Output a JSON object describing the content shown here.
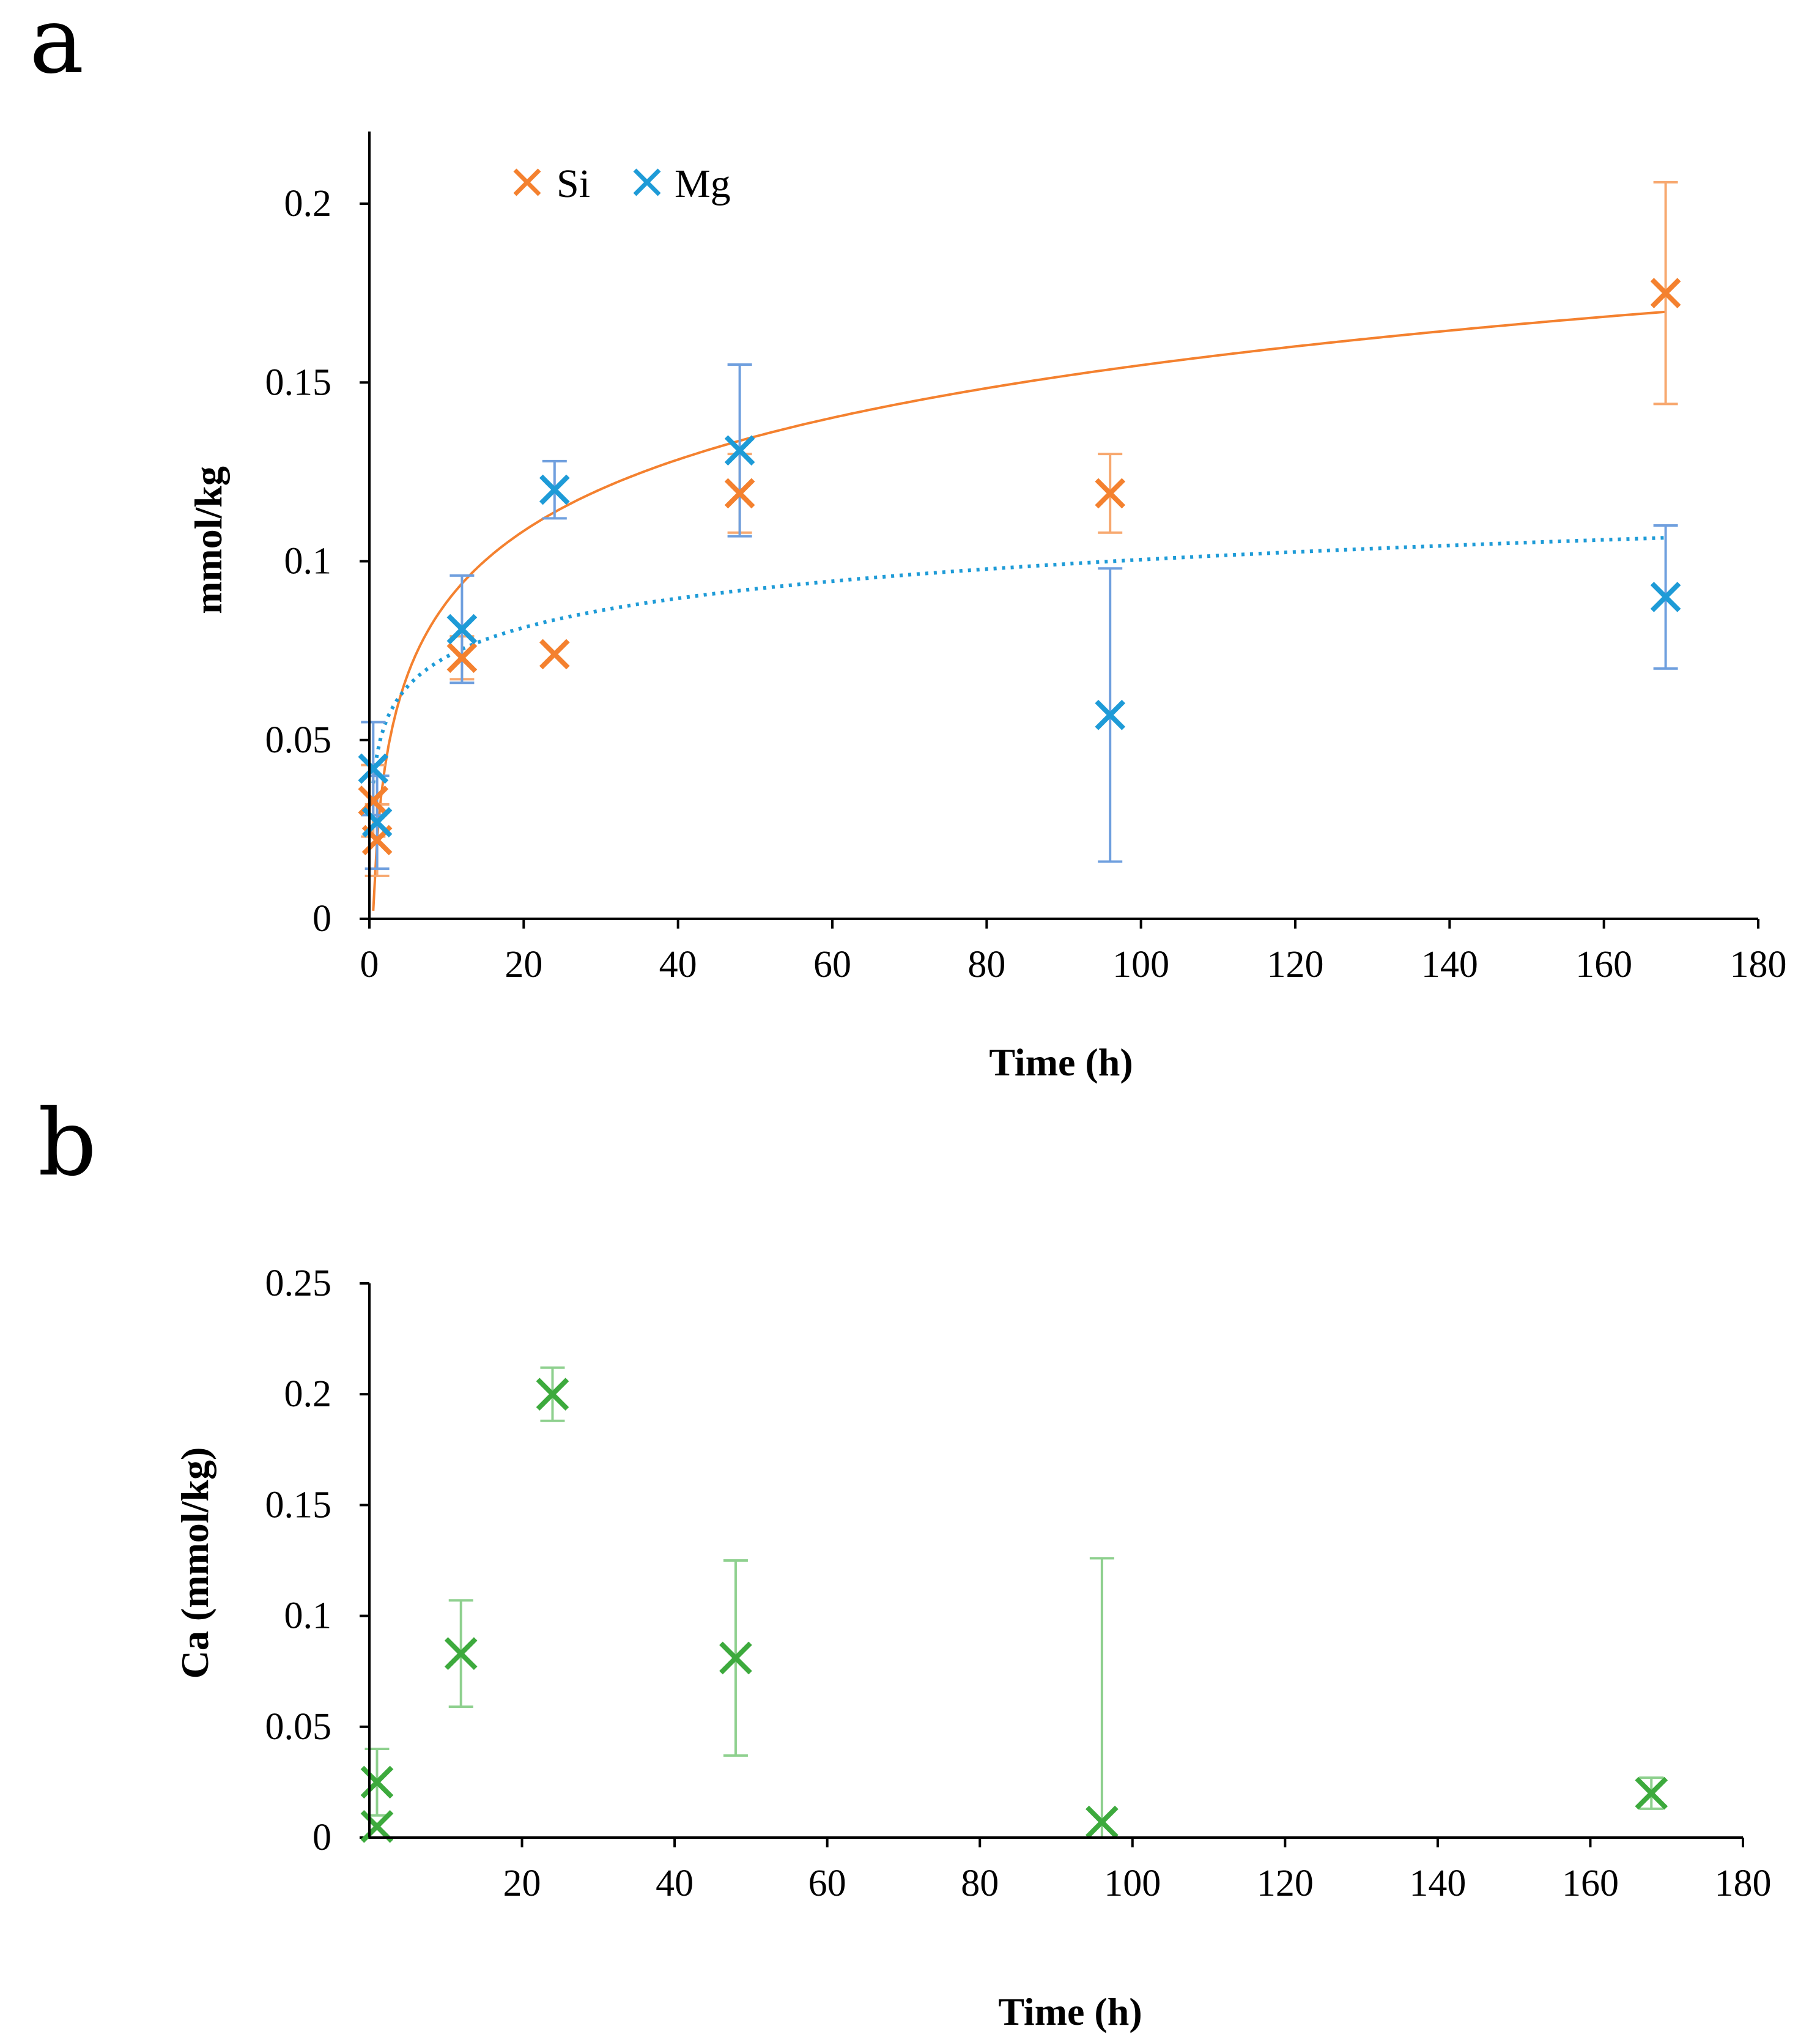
{
  "chart_data": [
    {
      "panel_label": "a",
      "type": "scatter",
      "xlabel": "Time (h)",
      "ylabel": "mmol/kg",
      "xlim": [
        0,
        180
      ],
      "ylim": [
        0,
        0.22
      ],
      "xticks": [
        0,
        20,
        40,
        60,
        80,
        100,
        120,
        140,
        160,
        180
      ],
      "xtick_labels": [
        "0",
        "20",
        "40",
        "60",
        "80",
        "100",
        "120",
        "140",
        "160",
        "180"
      ],
      "yticks": [
        0,
        0.05,
        0.1,
        0.15,
        0.2
      ],
      "ytick_labels": [
        "0",
        "0.05",
        "0.1",
        "0.15",
        "0.2"
      ],
      "legend": [
        "Si",
        "Mg"
      ],
      "legend_position": "top-left",
      "series": [
        {
          "name": "Si",
          "color": "#F4812F",
          "errcolor": "#F7A86F",
          "marker": "x",
          "x": [
            0.5,
            1,
            12,
            24,
            48,
            96,
            168
          ],
          "y": [
            0.033,
            0.022,
            0.073,
            0.074,
            0.119,
            0.119,
            0.175
          ],
          "err": [
            0.01,
            0.01,
            0.006,
            0.0,
            0.011,
            0.011,
            0.031
          ],
          "trendline": {
            "type": "logarithmic",
            "style": "solid",
            "a": 0.0222,
            "b": 0.0288
          }
        },
        {
          "name": "Mg",
          "color": "#1E9BD7",
          "errcolor": "#6F9FDE",
          "marker": "x",
          "x": [
            0.5,
            1,
            12,
            24,
            48,
            96,
            168
          ],
          "y": [
            0.042,
            0.027,
            0.081,
            0.12,
            0.131,
            0.057,
            0.09
          ],
          "err": [
            0.013,
            0.013,
            0.015,
            0.008,
            0.024,
            0.041,
            0.02
          ],
          "trendline": {
            "type": "logarithmic",
            "style": "dotted",
            "a": 0.0461,
            "b": 0.0118
          }
        }
      ]
    },
    {
      "panel_label": "b",
      "type": "scatter",
      "xlabel": "Time (h)",
      "ylabel": "Ca (mmol/kg)",
      "xlim": [
        0,
        180
      ],
      "ylim": [
        0,
        0.25
      ],
      "xticks": [
        20,
        40,
        60,
        80,
        100,
        120,
        140,
        160,
        180
      ],
      "xtick_labels": [
        "20",
        "40",
        "60",
        "80",
        "100",
        "120",
        "140",
        "160",
        "180"
      ],
      "yticks": [
        0,
        0.05,
        0.1,
        0.15,
        0.2,
        0.25
      ],
      "ytick_labels": [
        "0",
        "0.05",
        "0.1",
        "0.15",
        "0.2",
        "0.25"
      ],
      "series": [
        {
          "name": "Ca",
          "color": "#3DAA3D",
          "errcolor": "#8ED08E",
          "marker": "x",
          "x": [
            1,
            1,
            12,
            24,
            48,
            96,
            168
          ],
          "y": [
            0.025,
            0.005,
            0.083,
            0.2,
            0.081,
            0.007,
            0.02
          ],
          "err": [
            0.015,
            0.0,
            0.024,
            0.012,
            0.044,
            0.119,
            0.007
          ]
        }
      ]
    }
  ]
}
